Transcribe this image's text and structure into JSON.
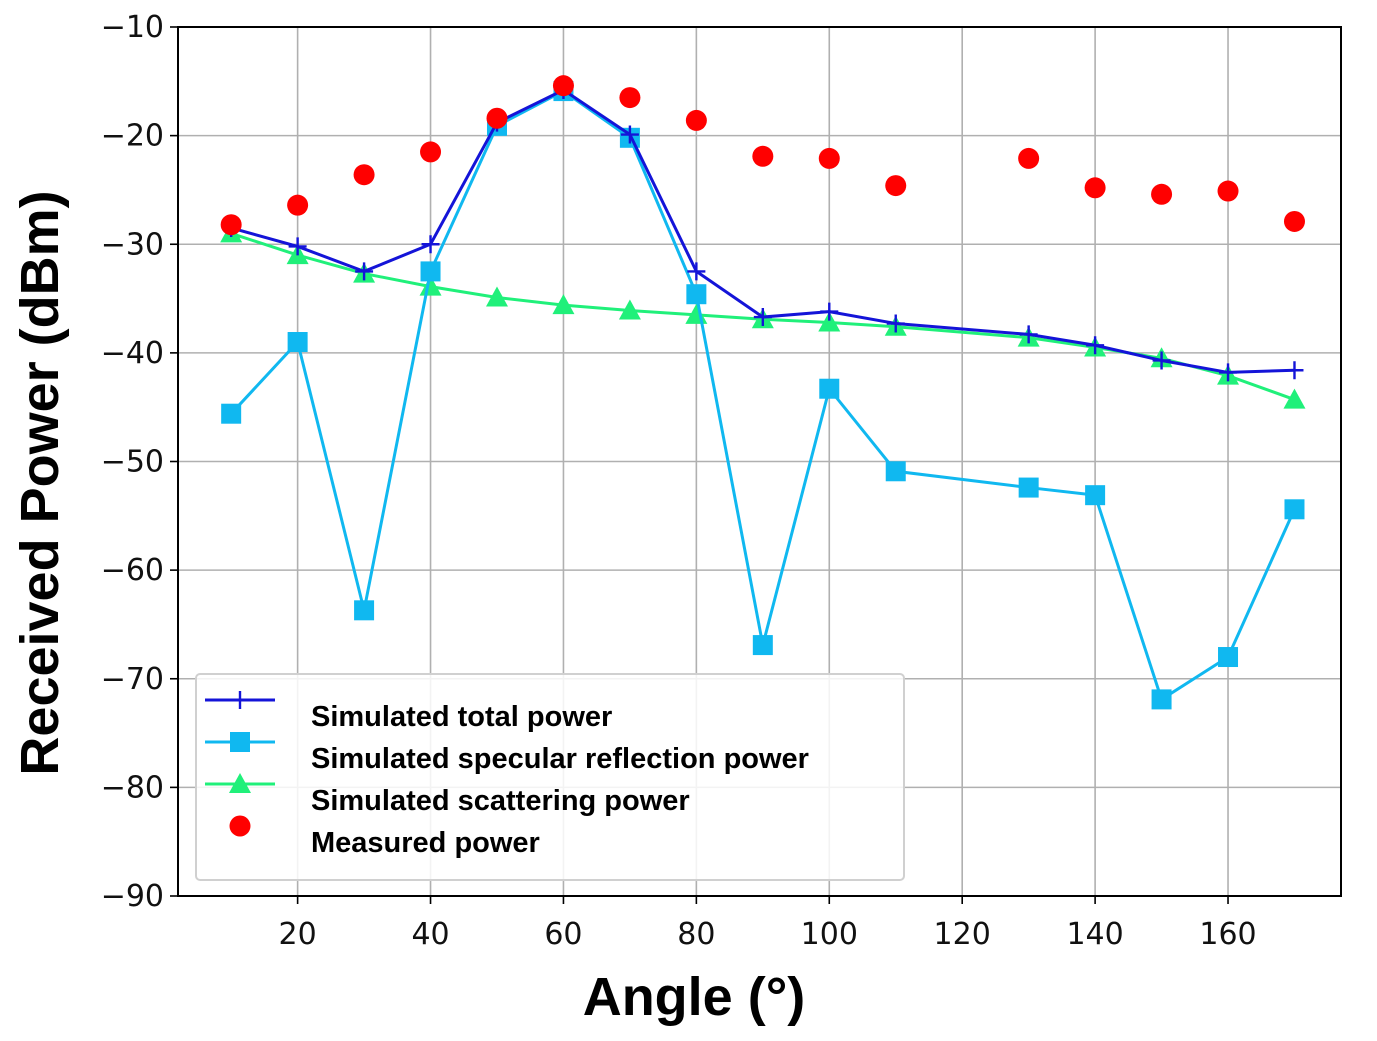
{
  "chart_data": {
    "type": "line",
    "title": "",
    "xlabel": "Angle (°)",
    "ylabel": "Received Power (dBm)",
    "xlim": [
      2,
      177
    ],
    "ylim": [
      -90,
      -10
    ],
    "xticks": [
      20,
      40,
      60,
      80,
      100,
      120,
      140,
      160
    ],
    "yticks": [
      -90,
      -80,
      -70,
      -60,
      -50,
      -40,
      -30,
      -20,
      -10
    ],
    "grid": true,
    "legend_position": "bottom-left",
    "series": [
      {
        "name": "Simulated total power",
        "color": "#1414d8",
        "marker": "plus",
        "line": true,
        "x": [
          10,
          20,
          30,
          40,
          50,
          60,
          70,
          80,
          90,
          100,
          110,
          130,
          140,
          150,
          160,
          170
        ],
        "y": [
          -28.5,
          -30.2,
          -32.5,
          -30.0,
          -18.8,
          -15.8,
          -19.9,
          -32.5,
          -36.7,
          -36.2,
          -37.3,
          -38.3,
          -39.3,
          -40.7,
          -41.8,
          -41.6
        ]
      },
      {
        "name": "Simulated specular reflection power",
        "color": "#10b8f0",
        "marker": "square",
        "line": true,
        "x": [
          10,
          20,
          30,
          40,
          50,
          60,
          70,
          80,
          90,
          100,
          110,
          130,
          140,
          150,
          160,
          170
        ],
        "y": [
          -45.6,
          -39.0,
          -63.7,
          -32.5,
          -19.1,
          -15.9,
          -20.2,
          -34.6,
          -66.9,
          -43.3,
          -50.9,
          -52.4,
          -53.1,
          -71.9,
          -68.0,
          -54.4
        ]
      },
      {
        "name": "Simulated scattering power",
        "color": "#20f07a",
        "marker": "triangle",
        "line": true,
        "x": [
          10,
          20,
          30,
          40,
          50,
          60,
          70,
          80,
          90,
          100,
          110,
          130,
          140,
          150,
          160,
          170
        ],
        "y": [
          -29.0,
          -31.0,
          -32.7,
          -33.9,
          -34.9,
          -35.6,
          -36.1,
          -36.5,
          -36.9,
          -37.2,
          -37.6,
          -38.6,
          -39.5,
          -40.5,
          -42.1,
          -44.3
        ]
      },
      {
        "name": "Measured power",
        "color": "#ff0000",
        "marker": "circle",
        "line": false,
        "x": [
          10,
          20,
          30,
          40,
          50,
          60,
          70,
          80,
          90,
          100,
          110,
          130,
          140,
          150,
          160,
          170
        ],
        "y": [
          -28.2,
          -26.4,
          -23.6,
          -21.5,
          -18.4,
          -15.4,
          -16.5,
          -18.6,
          -21.9,
          -22.1,
          -24.6,
          -22.1,
          -24.8,
          -25.4,
          -25.1,
          -27.9
        ]
      }
    ]
  }
}
